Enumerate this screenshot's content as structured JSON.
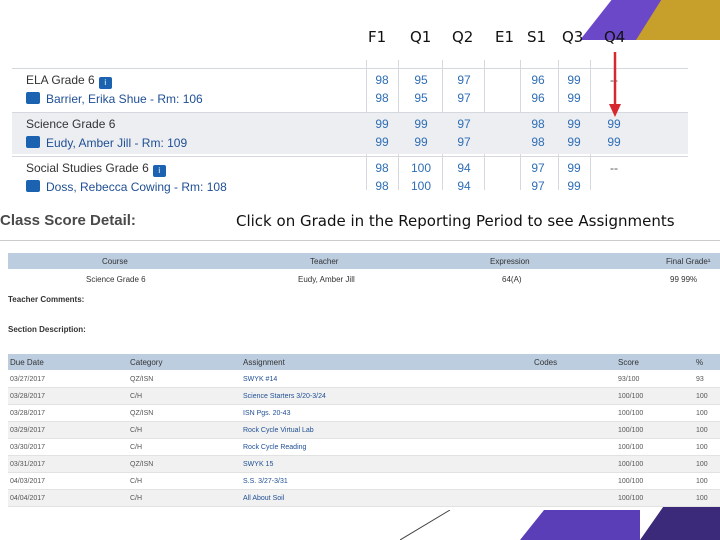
{
  "colors": {
    "accent_purple": "#6b48c8",
    "accent_gold": "#c6a02a",
    "table_header": "#bccde0",
    "link": "#1f4f94",
    "arrow": "#d7282f"
  },
  "columns": [
    "F1",
    "Q1",
    "Q2",
    "E1",
    "S1",
    "Q3",
    "Q4"
  ],
  "courses": [
    {
      "name": "ELA Grade 6",
      "teacher": "Barrier, Erika Shue - Rm: 106",
      "row1": [
        "98",
        "95",
        "97",
        "",
        "96",
        "99",
        "--"
      ],
      "row2": [
        "98",
        "95",
        "97",
        "",
        "96",
        "99",
        ""
      ]
    },
    {
      "name": "Science Grade 6",
      "teacher": "Eudy, Amber Jill - Rm: 109",
      "row1": [
        "99",
        "99",
        "97",
        "",
        "98",
        "99",
        "99"
      ],
      "row2": [
        "99",
        "99",
        "97",
        "",
        "98",
        "99",
        "99"
      ]
    },
    {
      "name": "Social Studies Grade 6",
      "teacher": "Doss, Rebecca Cowing - Rm: 108",
      "row1": [
        "98",
        "100",
        "94",
        "",
        "97",
        "99",
        "--"
      ],
      "row2": [
        "98",
        "100",
        "94",
        "",
        "97",
        "99",
        ""
      ]
    }
  ],
  "detail_title": "Class Score Detail:",
  "instruction": "Click on Grade in the Reporting Period to see Assignments",
  "summary": {
    "headers": {
      "course": "Course",
      "teacher": "Teacher",
      "expression": "Expression",
      "final_grade": "Final Grade¹"
    },
    "row": {
      "course": "Science Grade 6",
      "teacher": "Eudy, Amber Jill",
      "expression": "64(A)",
      "final_grade": "99  99%"
    }
  },
  "teacher_comments_label": "Teacher Comments:",
  "section_description_label": "Section Description:",
  "assignments": {
    "headers": {
      "due_date": "Due Date",
      "category": "Category",
      "assignment": "Assignment",
      "codes": "Codes",
      "score": "Score",
      "percent": "%"
    },
    "rows": [
      {
        "due_date": "03/27/2017",
        "category": "QZ/ISN",
        "assignment": "SWYK #14",
        "score": "93/100",
        "percent": "93"
      },
      {
        "due_date": "03/28/2017",
        "category": "C/H",
        "assignment": "Science Starters 3/20-3/24",
        "score": "100/100",
        "percent": "100"
      },
      {
        "due_date": "03/28/2017",
        "category": "QZ/ISN",
        "assignment": "ISN Pgs. 20-43",
        "score": "100/100",
        "percent": "100"
      },
      {
        "due_date": "03/29/2017",
        "category": "C/H",
        "assignment": "Rock Cycle Virtual Lab",
        "score": "100/100",
        "percent": "100"
      },
      {
        "due_date": "03/30/2017",
        "category": "C/H",
        "assignment": "Rock Cycle Reading",
        "score": "100/100",
        "percent": "100"
      },
      {
        "due_date": "03/31/2017",
        "category": "QZ/ISN",
        "assignment": "SWYK 15",
        "score": "100/100",
        "percent": "100"
      },
      {
        "due_date": "04/03/2017",
        "category": "C/H",
        "assignment": "S.S. 3/27-3/31",
        "score": "100/100",
        "percent": "100"
      },
      {
        "due_date": "04/04/2017",
        "category": "C/H",
        "assignment": "All About Soil",
        "score": "100/100",
        "percent": "100"
      }
    ]
  }
}
